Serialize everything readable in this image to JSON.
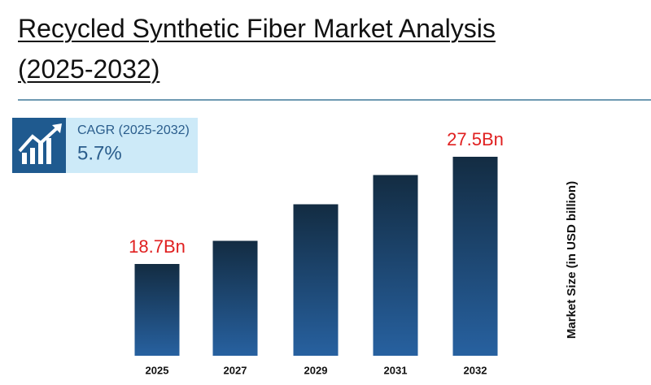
{
  "chart_data": {
    "type": "bar",
    "title": "Recycled Synthetic Fiber Market Analysis (2025-2032)",
    "categories": [
      "2025",
      "2027",
      "2029",
      "2031",
      "2032"
    ],
    "values": [
      18.7,
      20.6,
      23.6,
      26.0,
      27.5
    ],
    "value_labels": [
      "18.7Bn",
      null,
      null,
      null,
      "27.5Bn"
    ],
    "y_label": "Market Size (in USD billion)",
    "cagr": {
      "label": "CAGR (2025-2032)",
      "value": "5.7%"
    },
    "color": "#1f5a8f"
  }
}
